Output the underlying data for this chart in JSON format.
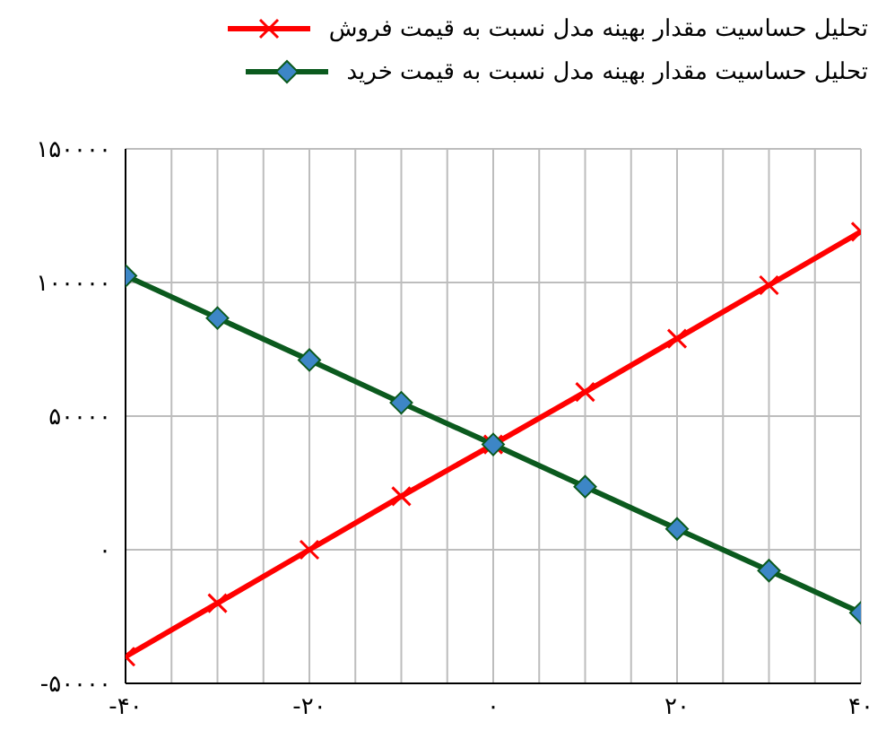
{
  "chart_data": {
    "type": "line",
    "x": [
      -40,
      -30,
      -20,
      -10,
      0,
      10,
      20,
      30,
      40
    ],
    "series": [
      {
        "name": "تحلیل حساسیت مقدار بهینه مدل نسبت به قیمت فروش",
        "color": "#ff0000",
        "marker": "cross",
        "values": [
          -40000,
          -20000,
          0,
          20000,
          39400,
          59000,
          79000,
          99000,
          119000
        ]
      },
      {
        "name": "تحلیل حساسیت مقدار بهینه مدل نسبت به قیمت خرید",
        "color": "#0b5a1e",
        "marker": "diamond",
        "values": [
          102500,
          86700,
          71000,
          55000,
          39400,
          23600,
          7800,
          -7800,
          -23600
        ]
      }
    ],
    "xlim": [
      -40,
      40
    ],
    "xticks": [
      {
        "value": -40,
        "label": "-۴۰"
      },
      {
        "value": -35,
        "label": null
      },
      {
        "value": -30,
        "label": null
      },
      {
        "value": -25,
        "label": null
      },
      {
        "value": -20,
        "label": "-۲۰"
      },
      {
        "value": -15,
        "label": null
      },
      {
        "value": -10,
        "label": null
      },
      {
        "value": -5,
        "label": null
      },
      {
        "value": 0,
        "label": "۰"
      },
      {
        "value": 5,
        "label": null
      },
      {
        "value": 10,
        "label": null
      },
      {
        "value": 15,
        "label": null
      },
      {
        "value": 20,
        "label": "۲۰"
      },
      {
        "value": 25,
        "label": null
      },
      {
        "value": 30,
        "label": null
      },
      {
        "value": 35,
        "label": null
      },
      {
        "value": 40,
        "label": "۴۰"
      }
    ],
    "ylim": [
      -50000,
      150000
    ],
    "yticks": [
      {
        "value": -50000,
        "label": "-۵۰۰۰۰"
      },
      {
        "value": 0,
        "label": "۰"
      },
      {
        "value": 50000,
        "label": "۵۰۰۰۰"
      },
      {
        "value": 100000,
        "label": "۱۰۰۰۰۰"
      },
      {
        "value": 150000,
        "label": "۱۵۰۰۰۰"
      }
    ],
    "grid": true,
    "legend": "top right",
    "line_style": "solid"
  }
}
